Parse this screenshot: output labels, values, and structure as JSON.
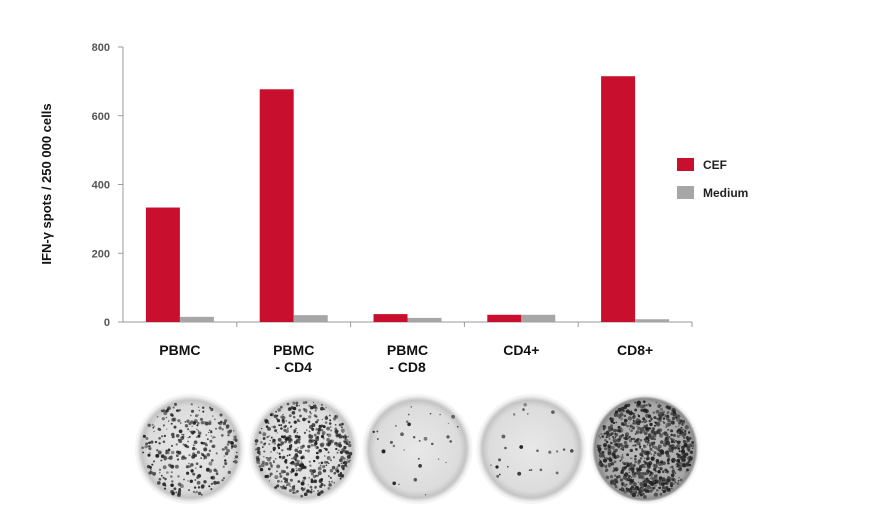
{
  "chart_data": {
    "type": "bar",
    "ylabel": "IFN-γ spots / 250 000 cells",
    "ylim": [
      0,
      800
    ],
    "yticks": [
      0,
      200,
      400,
      600,
      800
    ],
    "categories": [
      [
        "PBMC"
      ],
      [
        "PBMC",
        "- CD4"
      ],
      [
        "PBMC",
        "- CD8"
      ],
      [
        "CD4+"
      ],
      [
        "CD8+"
      ]
    ],
    "series": [
      {
        "name": "CEF",
        "color": "#c8102e",
        "values": [
          333,
          677,
          23,
          21,
          715
        ]
      },
      {
        "name": "Medium",
        "color": "#a6a6a6",
        "values": [
          15,
          20,
          12,
          21,
          8
        ]
      }
    ],
    "legend_position": "right",
    "grid": false
  },
  "wells": [
    {
      "name": "well-pbmc",
      "density": 0.34,
      "dark": false
    },
    {
      "name": "well-pbmc-minus-cd4",
      "density": 0.55,
      "dark": false
    },
    {
      "name": "well-pbmc-minus-cd8",
      "density": 0.03,
      "dark": false
    },
    {
      "name": "well-cd4",
      "density": 0.02,
      "dark": false
    },
    {
      "name": "well-cd8",
      "density": 0.9,
      "dark": true
    }
  ]
}
